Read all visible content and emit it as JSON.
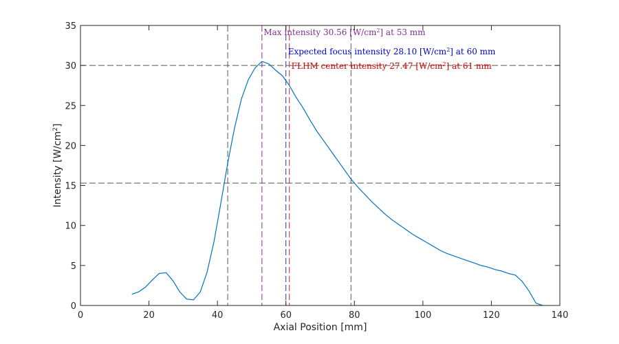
{
  "chart_data": {
    "type": "line",
    "xlabel": "Axial Position [mm]",
    "ylabel_main": "Intensity  [W/cm",
    "ylabel_sup": "2",
    "ylabel_tail": "]",
    "xlim": [
      0,
      140
    ],
    "ylim": [
      0,
      35
    ],
    "x_ticks": [
      0,
      20,
      40,
      60,
      80,
      100,
      120,
      140
    ],
    "y_ticks": [
      0,
      5,
      10,
      15,
      20,
      25,
      30,
      35
    ],
    "grid": false,
    "line_color": "#0072bd",
    "series": [
      {
        "x": [
          15,
          17,
          19,
          21,
          23,
          25,
          27,
          29,
          31,
          33,
          35,
          37,
          39,
          41,
          43,
          45,
          47,
          49,
          51,
          53,
          55,
          57,
          59,
          61,
          63,
          65,
          67,
          69,
          71,
          73,
          75,
          77,
          79,
          81,
          83,
          85,
          87,
          89,
          91,
          93,
          95,
          97,
          99,
          101,
          103,
          105,
          107,
          109,
          111,
          113,
          115,
          117,
          119,
          121,
          123,
          125,
          127,
          129,
          131,
          133,
          135
        ],
        "values": [
          1.4,
          1.7,
          2.3,
          3.2,
          4.0,
          4.1,
          3.1,
          1.7,
          0.8,
          0.7,
          1.7,
          4.2,
          8.0,
          12.8,
          17.8,
          22.2,
          25.8,
          28.2,
          29.7,
          30.5,
          30.2,
          29.4,
          28.7,
          27.5,
          26.0,
          24.7,
          23.2,
          21.8,
          20.6,
          19.4,
          18.2,
          17.0,
          15.8,
          14.8,
          13.9,
          13.0,
          12.2,
          11.4,
          10.7,
          10.1,
          9.5,
          8.9,
          8.4,
          7.9,
          7.4,
          6.9,
          6.5,
          6.2,
          5.9,
          5.6,
          5.3,
          5.0,
          4.8,
          4.5,
          4.3,
          4.0,
          3.8,
          3.0,
          1.8,
          0.3,
          0.0
        ]
      }
    ],
    "hlines": [
      {
        "y": 30.0,
        "color": "#555555"
      },
      {
        "y": 15.3,
        "color": "#555555"
      }
    ],
    "vlines": [
      {
        "x": 43,
        "color": "#555555"
      },
      {
        "x": 53,
        "color": "#7e2f8e"
      },
      {
        "x": 60,
        "color": "#2a2ad0"
      },
      {
        "x": 61,
        "color": "#d62728"
      },
      {
        "x": 79,
        "color": "#555555"
      }
    ],
    "annotations": [
      {
        "text": "Max  intensity  30.56  [W/cm",
        "sup": "2",
        "tail": "]  at  53  mm",
        "color": "#7e2f8e",
        "x": 53.5,
        "y": 33.8
      },
      {
        "text": "Expected  focus  intensity  28.10  [W/cm",
        "sup": "2",
        "tail": "]  at  60  mm",
        "color": "#0000cc",
        "x": 60.6,
        "y": 31.4
      },
      {
        "text": "FLHM  center  intensity  27.47  [W/cm",
        "sup": "2",
        "tail": "]  at  61  mm",
        "color": "#cc0000",
        "x": 61.6,
        "y": 29.6
      }
    ]
  }
}
